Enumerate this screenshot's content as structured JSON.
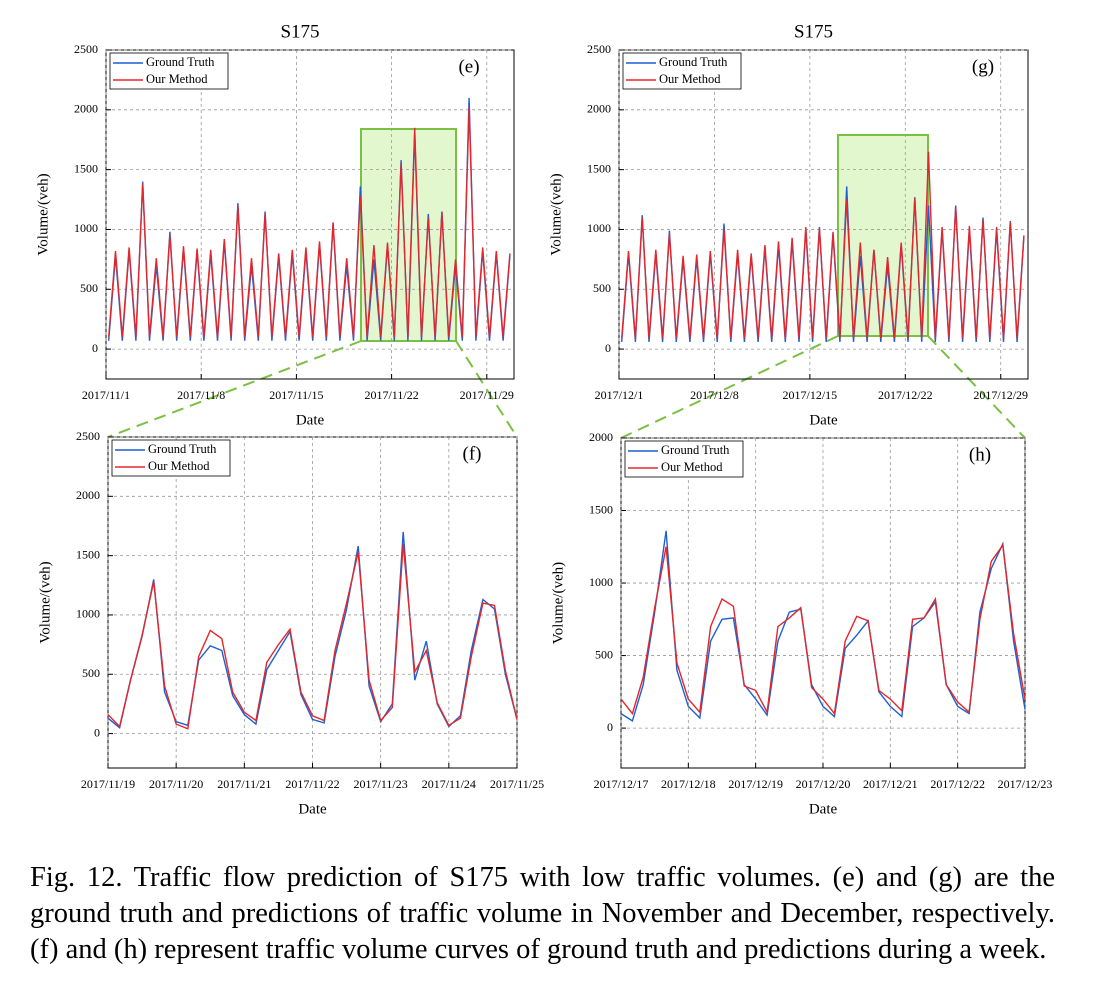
{
  "chart_data": [
    {
      "type": "line",
      "title": "S175",
      "annotation": "(e)",
      "xlabel": "Date",
      "ylabel": "Volume/(veh)",
      "grid": true,
      "legend": "upper left",
      "xlim": [
        1,
        31
      ],
      "ylim": [
        -250,
        2500
      ],
      "xticks": [
        {
          "value": 1,
          "label": "2017/11/1"
        },
        {
          "value": 8,
          "label": "2017/11/8"
        },
        {
          "value": 15,
          "label": "2017/11/15"
        },
        {
          "value": 22,
          "label": "2017/11/22"
        },
        {
          "value": 29,
          "label": "2017/11/29"
        }
      ],
      "yticks": [
        0,
        500,
        1000,
        1500,
        2000,
        2500
      ],
      "x": [
        1.2,
        1.7,
        2.2,
        2.7,
        3.2,
        3.7,
        4.2,
        4.7,
        5.2,
        5.7,
        6.2,
        6.7,
        7.2,
        7.7,
        8.2,
        8.7,
        9.2,
        9.7,
        10.2,
        10.7,
        11.2,
        11.7,
        12.2,
        12.7,
        13.2,
        13.7,
        14.2,
        14.7,
        15.2,
        15.7,
        16.2,
        16.7,
        17.2,
        17.7,
        18.2,
        18.7,
        19.2,
        19.7,
        20.2,
        20.7,
        21.2,
        21.7,
        22.2,
        22.7,
        23.2,
        23.7,
        24.2,
        24.7,
        25.2,
        25.7,
        26.2,
        26.7,
        27.2,
        27.7,
        28.2,
        28.7,
        29.2,
        29.7,
        30.2,
        30.7
      ],
      "series": [
        {
          "name": "Ground Truth",
          "color": "#1f5fd0",
          "values": [
            70,
            780,
            70,
            820,
            70,
            1400,
            70,
            700,
            70,
            980,
            70,
            840,
            70,
            820,
            70,
            800,
            70,
            900,
            70,
            1220,
            70,
            700,
            70,
            1150,
            70,
            780,
            70,
            800,
            70,
            820,
            70,
            880,
            70,
            1050,
            70,
            700,
            70,
            1360,
            70,
            750,
            70,
            870,
            70,
            1580,
            70,
            1800,
            70,
            1130,
            70,
            1150,
            70,
            700,
            70,
            2100,
            70,
            820,
            70,
            800,
            70,
            780
          ]
        },
        {
          "name": "Our Method",
          "color": "#e0282e",
          "values": [
            100,
            820,
            100,
            850,
            100,
            1380,
            100,
            760,
            100,
            950,
            100,
            860,
            100,
            840,
            100,
            830,
            100,
            920,
            100,
            1200,
            100,
            760,
            100,
            1130,
            100,
            800,
            100,
            830,
            100,
            850,
            100,
            900,
            100,
            1060,
            100,
            760,
            100,
            1280,
            100,
            870,
            100,
            890,
            100,
            1550,
            100,
            1850,
            100,
            1100,
            100,
            1140,
            100,
            750,
            100,
            2020,
            100,
            850,
            100,
            820,
            100,
            800
          ]
        }
      ]
    },
    {
      "type": "line",
      "title": "S175",
      "annotation": "(g)",
      "xlabel": "Date",
      "ylabel": "Volume/(veh)",
      "grid": true,
      "legend": "upper left",
      "xlim": [
        1,
        31
      ],
      "ylim": [
        -250,
        2500
      ],
      "xticks": [
        {
          "value": 1,
          "label": "2017/12/1"
        },
        {
          "value": 8,
          "label": "2017/12/8"
        },
        {
          "value": 15,
          "label": "2017/12/15"
        },
        {
          "value": 22,
          "label": "2017/12/22"
        },
        {
          "value": 29,
          "label": "2017/12/29"
        }
      ],
      "yticks": [
        0,
        500,
        1000,
        1500,
        2000,
        2500
      ],
      "x": [
        1.2,
        1.7,
        2.2,
        2.7,
        3.2,
        3.7,
        4.2,
        4.7,
        5.2,
        5.7,
        6.2,
        6.7,
        7.2,
        7.7,
        8.2,
        8.7,
        9.2,
        9.7,
        10.2,
        10.7,
        11.2,
        11.7,
        12.2,
        12.7,
        13.2,
        13.7,
        14.2,
        14.7,
        15.2,
        15.7,
        16.2,
        16.7,
        17.2,
        17.7,
        18.2,
        18.7,
        19.2,
        19.7,
        20.2,
        20.7,
        21.2,
        21.7,
        22.2,
        22.7,
        23.2,
        23.7,
        24.2,
        24.7,
        25.2,
        25.7,
        26.2,
        26.7,
        27.2,
        27.7,
        28.2,
        28.7,
        29.2,
        29.7,
        30.2,
        30.7
      ],
      "series": [
        {
          "name": "Ground Truth",
          "color": "#1f5fd0",
          "values": [
            60,
            800,
            60,
            1120,
            60,
            800,
            60,
            990,
            60,
            750,
            60,
            760,
            60,
            800,
            60,
            1050,
            60,
            800,
            60,
            780,
            60,
            850,
            60,
            870,
            60,
            900,
            60,
            1000,
            60,
            1020,
            60,
            960,
            60,
            1360,
            60,
            780,
            60,
            830,
            60,
            700,
            60,
            870,
            60,
            1270,
            60,
            1200,
            60,
            1000,
            60,
            1200,
            60,
            1000,
            60,
            1100,
            60,
            1000,
            60,
            1070,
            60,
            940
          ]
        },
        {
          "name": "Our Method",
          "color": "#e0282e",
          "values": [
            90,
            820,
            90,
            1100,
            90,
            830,
            90,
            960,
            90,
            780,
            90,
            790,
            90,
            820,
            90,
            1000,
            90,
            830,
            90,
            800,
            90,
            870,
            90,
            900,
            90,
            930,
            90,
            1020,
            90,
            1010,
            90,
            980,
            90,
            1250,
            90,
            890,
            90,
            830,
            90,
            770,
            90,
            890,
            90,
            1260,
            90,
            1650,
            90,
            1020,
            90,
            1180,
            90,
            1030,
            90,
            1080,
            90,
            1020,
            90,
            1060,
            90,
            950
          ]
        }
      ]
    },
    {
      "type": "line",
      "annotation": "(f)",
      "xlabel": "Date",
      "ylabel": "Volume/(veh)",
      "grid": true,
      "legend": "upper left",
      "xlim": [
        19,
        25
      ],
      "ylim": [
        -290,
        2500
      ],
      "xticks": [
        {
          "value": 19,
          "label": "2017/11/19"
        },
        {
          "value": 20,
          "label": "2017/11/20"
        },
        {
          "value": 21,
          "label": "2017/11/21"
        },
        {
          "value": 22,
          "label": "2017/11/22"
        },
        {
          "value": 23,
          "label": "2017/11/23"
        },
        {
          "value": 24,
          "label": "2017/11/24"
        },
        {
          "value": 25,
          "label": "2017/11/25"
        }
      ],
      "yticks": [
        0,
        500,
        1000,
        1500,
        2000,
        2500
      ],
      "x": [
        19,
        19.17,
        19.33,
        19.5,
        19.67,
        19.83,
        20,
        20.17,
        20.33,
        20.5,
        20.67,
        20.83,
        21,
        21.17,
        21.33,
        21.5,
        21.67,
        21.83,
        22,
        22.17,
        22.33,
        22.5,
        22.67,
        22.83,
        23,
        23.17,
        23.33,
        23.5,
        23.67,
        23.83,
        24,
        24.17,
        24.33,
        24.5,
        24.67,
        24.83,
        25
      ],
      "series": [
        {
          "name": "Ground Truth",
          "color": "#1f5fd0",
          "values": [
            130,
            50,
            450,
            820,
            1300,
            350,
            100,
            70,
            620,
            740,
            700,
            320,
            160,
            80,
            540,
            700,
            860,
            330,
            120,
            90,
            650,
            1050,
            1580,
            400,
            100,
            250,
            1700,
            450,
            780,
            250,
            60,
            150,
            700,
            1130,
            1050,
            500,
            120
          ]
        },
        {
          "name": "Our Method",
          "color": "#e0282e",
          "values": [
            160,
            60,
            450,
            830,
            1280,
            400,
            80,
            40,
            650,
            870,
            800,
            350,
            180,
            110,
            600,
            750,
            880,
            350,
            150,
            110,
            700,
            1100,
            1530,
            450,
            110,
            220,
            1600,
            520,
            700,
            260,
            70,
            130,
            650,
            1100,
            1080,
            530,
            120
          ]
        }
      ]
    },
    {
      "type": "line",
      "annotation": "(h)",
      "xlabel": "Date",
      "ylabel": "Volume/(veh)",
      "grid": true,
      "legend": "upper left",
      "xlim": [
        17,
        23
      ],
      "ylim": [
        -275,
        2000
      ],
      "xticks": [
        {
          "value": 17,
          "label": "2017/12/17"
        },
        {
          "value": 18,
          "label": "2017/12/18"
        },
        {
          "value": 19,
          "label": "2017/12/19"
        },
        {
          "value": 20,
          "label": "2017/12/20"
        },
        {
          "value": 21,
          "label": "2017/12/21"
        },
        {
          "value": 22,
          "label": "2017/12/22"
        },
        {
          "value": 23,
          "label": "2017/12/23"
        }
      ],
      "yticks": [
        0,
        500,
        1000,
        1500,
        2000
      ],
      "x": [
        17,
        17.17,
        17.33,
        17.5,
        17.67,
        17.83,
        18,
        18.17,
        18.33,
        18.5,
        18.67,
        18.83,
        19,
        19.17,
        19.33,
        19.5,
        19.67,
        19.83,
        20,
        20.17,
        20.33,
        20.5,
        20.67,
        20.83,
        21,
        21.17,
        21.33,
        21.5,
        21.67,
        21.83,
        22,
        22.17,
        22.33,
        22.5,
        22.67,
        22.83,
        23
      ],
      "series": [
        {
          "name": "Ground Truth",
          "color": "#1f5fd0",
          "values": [
            100,
            50,
            300,
            800,
            1360,
            400,
            150,
            70,
            600,
            750,
            760,
            300,
            200,
            90,
            600,
            800,
            820,
            300,
            150,
            80,
            550,
            640,
            740,
            250,
            150,
            80,
            700,
            760,
            870,
            300,
            150,
            100,
            800,
            1100,
            1270,
            600,
            130
          ]
        },
        {
          "name": "Our Method",
          "color": "#e0282e",
          "values": [
            200,
            100,
            350,
            830,
            1250,
            450,
            200,
            110,
            700,
            890,
            840,
            290,
            260,
            110,
            700,
            760,
            830,
            280,
            200,
            100,
            600,
            770,
            740,
            260,
            200,
            120,
            750,
            760,
            890,
            300,
            180,
            110,
            750,
            1150,
            1260,
            650,
            200
          ]
        }
      ]
    }
  ],
  "caption": "Fig. 12.  Traffic flow prediction of S175 with low traffic volumes. (e) and (g) are the ground truth and predictions of traffic volume in November and December, respectively. (f) and (h) represent traffic volume curves of ground truth and predictions during a week."
}
